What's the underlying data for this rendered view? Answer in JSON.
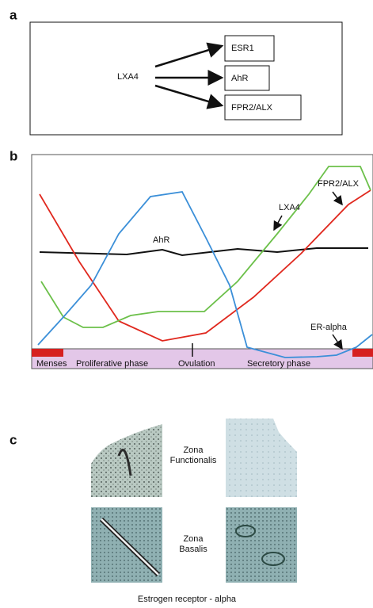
{
  "panels": {
    "a": {
      "label": "a",
      "source": "LXA4",
      "targets": [
        "ESR1",
        "AhR",
        "FPR2/ALX"
      ]
    },
    "b": {
      "label": "b",
      "curve_labels": {
        "ahr": "AhR",
        "lxa4": "LXA4",
        "fpr2": "FPR2/ALX",
        "er": "ER-alpha"
      },
      "phases": [
        "Menses",
        "Proliferative phase",
        "Ovulation",
        "Secretory phase"
      ]
    },
    "c": {
      "label": "c",
      "rows": [
        [
          "Zona",
          "Functionalis"
        ],
        [
          "Zona",
          "Basalis"
        ]
      ],
      "caption": "Estrogen receptor - alpha"
    }
  }
}
